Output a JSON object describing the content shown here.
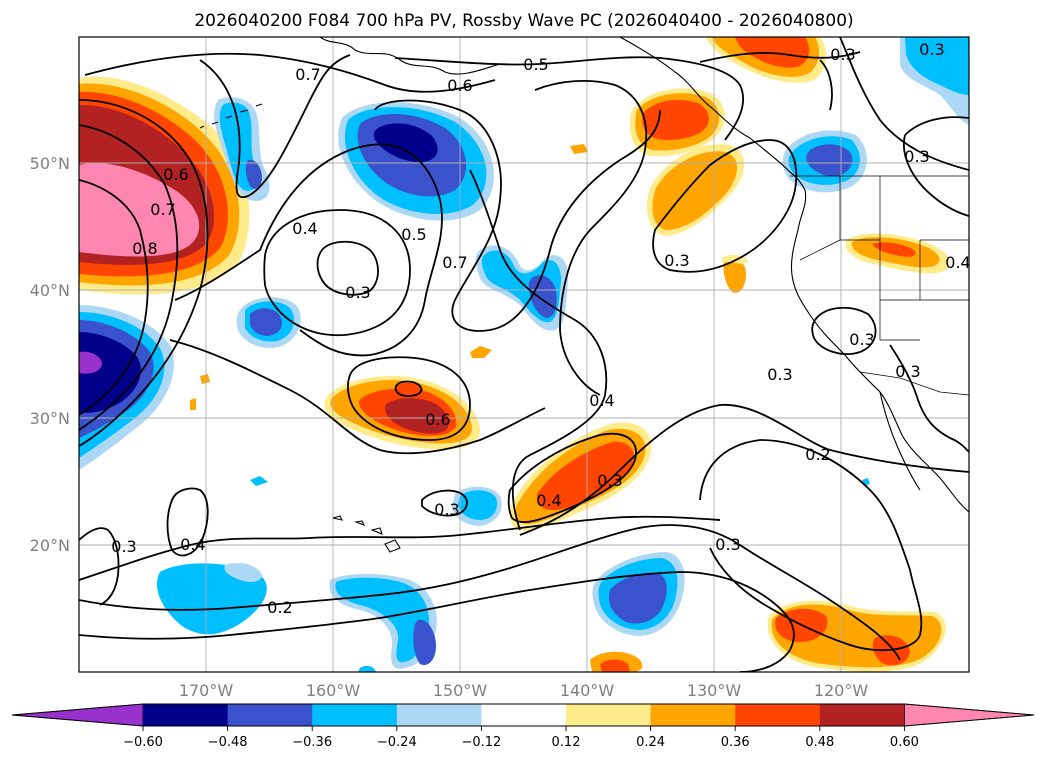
{
  "title": "2026040200 F084 700 hPa PV, Rossby Wave PC (2026040400 - 2026040800)",
  "map": {
    "lat_labels": [
      "50°N",
      "40°N",
      "30°N",
      "20°N"
    ],
    "lon_labels": [
      "170°W",
      "160°W",
      "150°W",
      "140°W",
      "130°W",
      "120°W"
    ],
    "contour_labels": [
      "0.7",
      "0.6",
      "0.5",
      "0.3",
      "0.3",
      "0.6",
      "0.7",
      "0.8",
      "0.4",
      "0.3",
      "0.5",
      "0.7",
      "0.3",
      "0.3",
      "0.3",
      "0.4",
      "0.3",
      "0.6",
      "0.4",
      "0.2",
      "0.3",
      "0.4",
      "0.3",
      "0.4",
      "0.3",
      "0.2",
      "0.3",
      "0.3"
    ],
    "colors": {
      "neg_060": "#9932cc",
      "neg_048": "#00008b",
      "neg_036": "#3a53cc",
      "neg_024": "#00bfff",
      "neg_012": "#add8f5",
      "pos_012": "#ffeb8a",
      "pos_024": "#ffa500",
      "pos_036": "#ff4500",
      "pos_048": "#b22222",
      "pos_060": "#ff86b0"
    }
  },
  "colorbar": {
    "tick_labels": [
      "−0.60",
      "−0.48",
      "−0.36",
      "−0.24",
      "−0.12",
      "0.12",
      "0.24",
      "0.36",
      "0.48",
      "0.60"
    ],
    "colors": [
      "#9932cc",
      "#00008b",
      "#3a53cc",
      "#00bfff",
      "#add8f5",
      "#ffffff",
      "#ffeb8a",
      "#ffa500",
      "#ff4500",
      "#b22222",
      "#ff86b0"
    ]
  }
}
